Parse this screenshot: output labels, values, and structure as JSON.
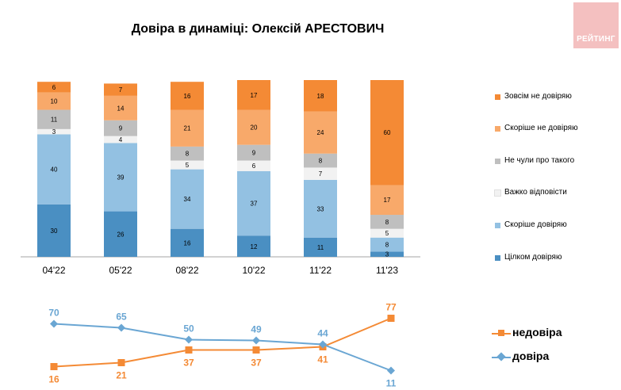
{
  "title": "Довіра в динаміці: Олексій АРЕСТОВИЧ",
  "logo": {
    "text": "РЕЙТИНГ"
  },
  "chart_data": [
    {
      "type": "bar",
      "stacked": true,
      "categories": [
        "04'22",
        "05'22",
        "08'22",
        "10'22",
        "11'22",
        "11'23"
      ],
      "series": [
        {
          "name": "Цілком довіряю",
          "color": "#4a8fc2",
          "values": [
            30,
            26,
            16,
            12,
            11,
            3
          ]
        },
        {
          "name": "Скоріше довіряю",
          "color": "#93c1e2",
          "values": [
            40,
            39,
            34,
            37,
            33,
            8
          ]
        },
        {
          "name": "Важко відповісти",
          "color": "#f2f2f2",
          "values": [
            3,
            4,
            5,
            6,
            7,
            5
          ]
        },
        {
          "name": "Не чули про такого",
          "color": "#bfbfbf",
          "values": [
            11,
            9,
            8,
            9,
            8,
            8
          ]
        },
        {
          "name": "Скоріше не довіряю",
          "color": "#f8a96a",
          "values": [
            10,
            14,
            21,
            20,
            24,
            17
          ]
        },
        {
          "name": "Зовсім не довіряю",
          "color": "#f48a35",
          "values": [
            6,
            7,
            16,
            17,
            18,
            60
          ]
        }
      ],
      "legend_order": [
        "Зовсім не довіряю",
        "Скоріше не довіряю",
        "Не чули про такого",
        "Важко відповісти",
        "Скоріше довіряю",
        "Цілком довіряю"
      ],
      "legend_position": "right",
      "ylim": [
        0,
        101
      ]
    },
    {
      "type": "line",
      "categories": [
        "04'22",
        "05'22",
        "08'22",
        "10'22",
        "11'22",
        "11'23"
      ],
      "series": [
        {
          "name": "недовіра",
          "color": "#f48a35",
          "marker": "square",
          "values": [
            16,
            21,
            37,
            37,
            41,
            77
          ]
        },
        {
          "name": "довіра",
          "color": "#6aa6d3",
          "marker": "diamond",
          "values": [
            70,
            65,
            50,
            49,
            44,
            11
          ]
        }
      ],
      "legend_position": "right",
      "ylim": [
        0,
        100
      ]
    }
  ]
}
